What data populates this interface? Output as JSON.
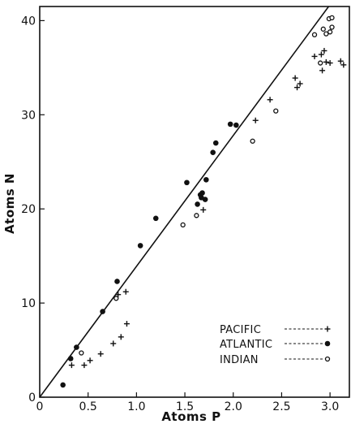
{
  "chart_data": {
    "type": "scatter",
    "xlabel": "Atoms P",
    "ylabel": "Atoms N",
    "xlim": [
      0,
      32
    ],
    "ylim": [
      0,
      41.5
    ],
    "x_ticks": [
      {
        "value": 0,
        "label": "0"
      },
      {
        "value": 5,
        "label": "0.5"
      },
      {
        "value": 10,
        "label": "1.0"
      },
      {
        "value": 15,
        "label": "1.5"
      },
      {
        "value": 20,
        "label": "2.0"
      },
      {
        "value": 25,
        "label": "2.5"
      },
      {
        "value": 30,
        "label": "3.0"
      }
    ],
    "y_ticks": [
      {
        "value": 0,
        "label": "0"
      },
      {
        "value": 10,
        "label": "10"
      },
      {
        "value": 20,
        "label": "20"
      },
      {
        "value": 30,
        "label": "30"
      },
      {
        "value": 40,
        "label": "40"
      }
    ],
    "grid": false,
    "legend_position": "bottom-right",
    "reference_line": {
      "slope": 1.39,
      "intercept": 0
    },
    "series": [
      {
        "name": "PACIFIC",
        "marker": "plus",
        "points": [
          [
            3.3,
            3.4
          ],
          [
            4.6,
            3.4
          ],
          [
            5.2,
            3.9
          ],
          [
            6.3,
            4.6
          ],
          [
            7.6,
            5.7
          ],
          [
            8.4,
            6.4
          ],
          [
            9.0,
            7.8
          ],
          [
            8.1,
            10.9
          ],
          [
            8.9,
            11.2
          ],
          [
            16.9,
            19.9
          ],
          [
            22.3,
            29.4
          ],
          [
            23.8,
            31.6
          ],
          [
            26.4,
            33.9
          ],
          [
            26.6,
            32.9
          ],
          [
            26.9,
            33.3
          ],
          [
            28.4,
            36.2
          ],
          [
            29.1,
            36.4
          ],
          [
            29.4,
            36.8
          ],
          [
            29.6,
            35.6
          ],
          [
            29.2,
            34.7
          ],
          [
            30.0,
            35.5
          ],
          [
            31.1,
            35.7
          ],
          [
            31.4,
            35.3
          ]
        ]
      },
      {
        "name": "ATLANTIC",
        "marker": "dot",
        "points": [
          [
            2.4,
            1.3
          ],
          [
            3.2,
            4.1
          ],
          [
            3.8,
            5.3
          ],
          [
            6.5,
            9.1
          ],
          [
            8.0,
            12.3
          ],
          [
            10.4,
            16.1
          ],
          [
            12.0,
            19.0
          ],
          [
            15.2,
            22.8
          ],
          [
            16.3,
            20.5
          ],
          [
            16.6,
            21.5
          ],
          [
            16.7,
            21.2
          ],
          [
            16.8,
            21.7
          ],
          [
            17.1,
            21.0
          ],
          [
            17.2,
            23.1
          ],
          [
            17.9,
            26.0
          ],
          [
            18.2,
            27.0
          ],
          [
            19.7,
            29.0
          ],
          [
            20.3,
            28.9
          ]
        ]
      },
      {
        "name": "INDIAN",
        "marker": "circle",
        "points": [
          [
            4.3,
            4.7
          ],
          [
            7.9,
            10.5
          ],
          [
            14.8,
            18.3
          ],
          [
            16.2,
            19.3
          ],
          [
            22.0,
            27.2
          ],
          [
            24.4,
            30.4
          ],
          [
            28.4,
            38.5
          ],
          [
            29.0,
            35.5
          ],
          [
            29.3,
            39.1
          ],
          [
            29.6,
            38.6
          ],
          [
            29.9,
            40.2
          ],
          [
            30.2,
            40.3
          ],
          [
            30.0,
            38.8
          ],
          [
            30.2,
            39.3
          ]
        ]
      }
    ]
  }
}
